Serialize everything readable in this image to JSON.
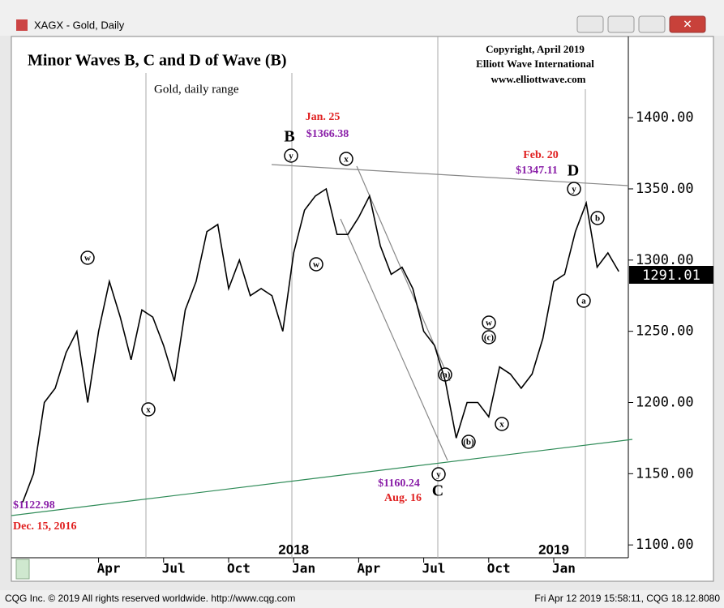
{
  "window_title": "XAGX - Gold, Daily",
  "status_left": "CQG Inc. © 2019 All rights reserved worldwide. http://www.cqg.com",
  "status_right": "Fri Apr 12 2019 15:58:11, CQG 18.12.8080",
  "chart_data": {
    "type": "line",
    "title": "Minor Waves B, C and D of Wave (B)",
    "subtitle": "Gold, daily range",
    "copyright": [
      "Copyright, April 2019",
      "Elliott Wave International",
      "www.elliottwave.com"
    ],
    "categories": [
      null,
      null,
      null,
      null,
      null,
      null,
      null,
      "Apr",
      null,
      null,
      null,
      null,
      null,
      "Jul",
      null,
      null,
      null,
      null,
      null,
      "Oct",
      null,
      null,
      null,
      null,
      null,
      "Jan",
      null,
      null,
      null,
      null,
      null,
      "Apr",
      null,
      null,
      null,
      null,
      null,
      "Jul",
      null,
      null,
      null,
      null,
      null,
      "Oct",
      null,
      null,
      null,
      null,
      null,
      "Jan",
      null,
      null,
      null,
      null,
      null,
      null
    ],
    "x_year_labels": [
      "2018",
      "2019"
    ],
    "values": [
      1130,
      1150,
      1200,
      1210,
      1235,
      1250,
      1200,
      1250,
      1285,
      1260,
      1230,
      1265,
      1260,
      1240,
      1215,
      1265,
      1285,
      1320,
      1325,
      1280,
      1300,
      1275,
      1280,
      1275,
      1250,
      1305,
      1335,
      1345,
      1350,
      1318,
      1318,
      1330,
      1345,
      1310,
      1290,
      1295,
      1280,
      1250,
      1240,
      1215,
      1175,
      1200,
      1200,
      1190,
      1225,
      1220,
      1210,
      1220,
      1245,
      1285,
      1290,
      1320,
      1340,
      1295,
      1305,
      1292
    ],
    "color": "#000000",
    "ylim": [
      1091,
      1457
    ],
    "yticks": [
      {
        "value": 1100,
        "label": "1100.00"
      },
      {
        "value": 1150,
        "label": "1150.00"
      },
      {
        "value": 1200,
        "label": "1200.00"
      },
      {
        "value": 1250,
        "label": "1250.00"
      },
      {
        "value": 1300,
        "label": "1300.00"
      },
      {
        "value": 1350,
        "label": "1350.00"
      },
      {
        "value": 1400,
        "label": "1400.00"
      }
    ],
    "last_price_label": "1291.01",
    "wave_letters": [
      "B",
      "C",
      "D"
    ],
    "wave_circles": [
      "y",
      "x",
      "w",
      "w",
      "x",
      "y",
      "(a)",
      "(b)",
      "w",
      "(c)",
      "x",
      "y",
      "b",
      "a"
    ],
    "annotations": [
      "Jan. 25",
      "$1366.38",
      "Feb. 20",
      "$1347.11",
      "$1160.24",
      "Aug. 16",
      "$1122.98",
      "Dec. 15, 2016"
    ]
  }
}
